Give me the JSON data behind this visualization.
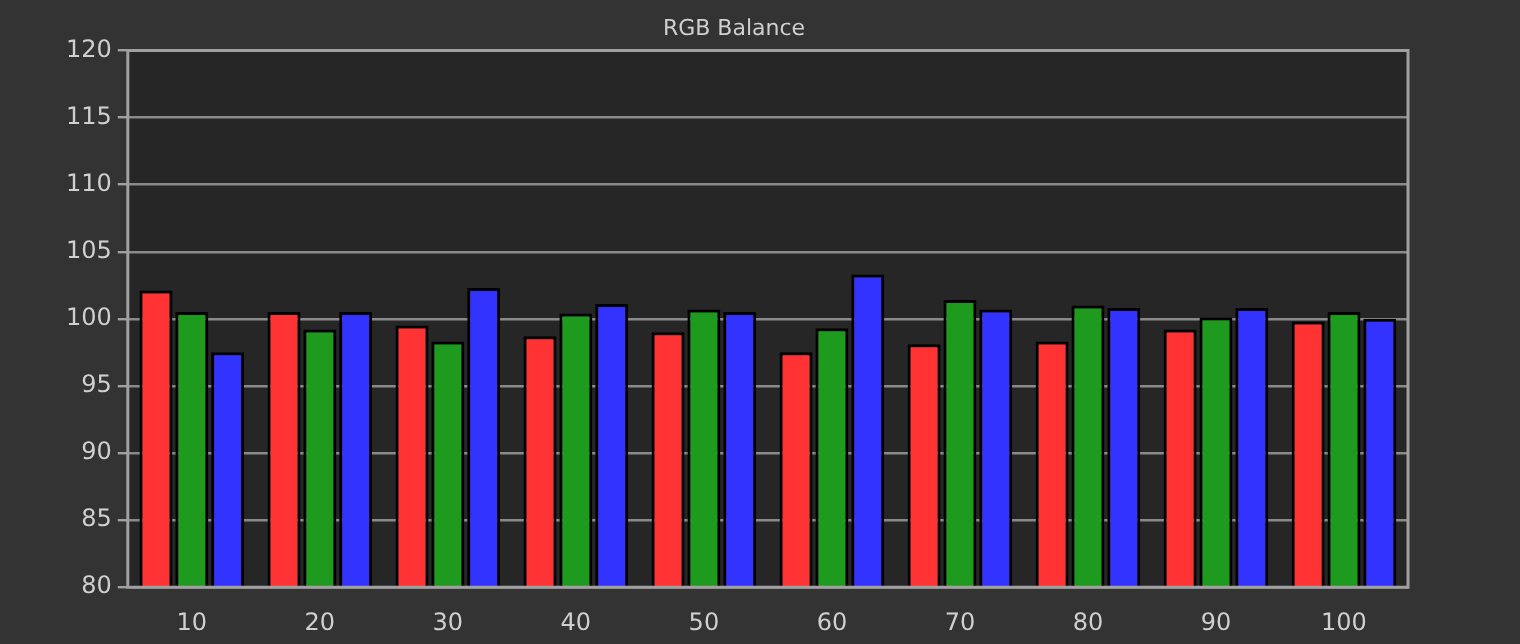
{
  "chart_data": {
    "type": "bar",
    "title": "RGB Balance",
    "categories": [
      "10",
      "20",
      "30",
      "40",
      "50",
      "60",
      "70",
      "80",
      "90",
      "100"
    ],
    "series": [
      {
        "color": "#ff3333",
        "values": [
          102.1,
          100.5,
          99.5,
          98.7,
          99.0,
          97.5,
          98.1,
          98.3,
          99.2,
          99.8
        ]
      },
      {
        "color": "#1e9a1e",
        "values": [
          100.5,
          99.2,
          98.3,
          100.4,
          100.7,
          99.3,
          101.4,
          101.0,
          100.1,
          100.5
        ]
      },
      {
        "color": "#3333ff",
        "values": [
          97.5,
          100.5,
          102.3,
          101.1,
          100.5,
          103.3,
          100.7,
          100.8,
          100.8,
          100.0
        ]
      }
    ],
    "ylim": [
      80,
      120
    ],
    "yticks": [
      80,
      85,
      90,
      95,
      100,
      105,
      110,
      115,
      120
    ],
    "grid": "y",
    "legend": false
  }
}
